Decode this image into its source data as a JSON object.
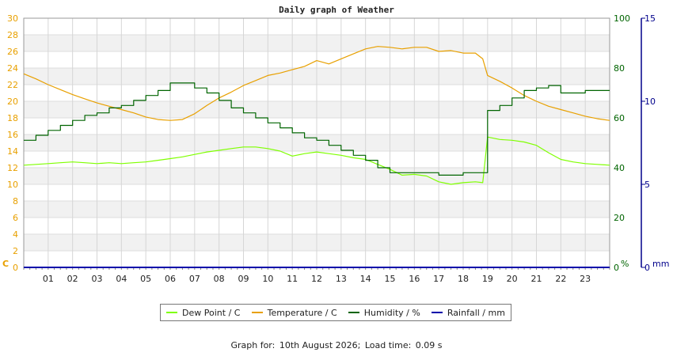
{
  "chart_data": {
    "type": "line",
    "title": "Daily graph of Weather",
    "x_ticks": [
      "01",
      "02",
      "03",
      "04",
      "05",
      "06",
      "07",
      "08",
      "09",
      "10",
      "11",
      "12",
      "13",
      "14",
      "15",
      "16",
      "17",
      "18",
      "19",
      "20",
      "21",
      "22",
      "23"
    ],
    "xlim": [
      0,
      24
    ],
    "axes": {
      "left": {
        "unit": "C",
        "ticks": [
          0,
          2,
          4,
          6,
          8,
          10,
          12,
          14,
          16,
          18,
          20,
          22,
          24,
          26,
          28,
          30
        ],
        "range": [
          0,
          30
        ],
        "color": "#e8a000"
      },
      "right1": {
        "unit": "%",
        "ticks": [
          0,
          20,
          40,
          60,
          80,
          100
        ],
        "range": [
          0,
          100
        ],
        "color": "#006400"
      },
      "right2": {
        "unit": "mm",
        "ticks": [
          0,
          5,
          10,
          15
        ],
        "range": [
          0,
          15
        ],
        "color": "#00008b"
      }
    },
    "series": [
      {
        "name": "Dew Point / C",
        "axis": "left",
        "color": "#7fff00",
        "x": [
          0,
          0.5,
          1,
          1.5,
          2,
          2.5,
          3,
          3.5,
          4,
          4.5,
          5,
          5.5,
          6,
          6.5,
          7,
          7.5,
          8,
          8.5,
          9,
          9.5,
          10,
          10.5,
          11,
          11.5,
          12,
          12.5,
          13,
          13.5,
          14,
          14.5,
          15,
          15.5,
          16,
          16.5,
          17,
          17.5,
          18,
          18.5,
          18.8,
          19,
          19.5,
          20,
          20.5,
          21,
          21.5,
          22,
          22.5,
          23,
          23.5,
          24
        ],
        "y": [
          12.3,
          12.4,
          12.5,
          12.6,
          12.7,
          12.6,
          12.5,
          12.6,
          12.5,
          12.6,
          12.7,
          12.9,
          13.1,
          13.3,
          13.6,
          13.9,
          14.1,
          14.3,
          14.5,
          14.5,
          14.3,
          14.0,
          13.4,
          13.7,
          13.9,
          13.7,
          13.5,
          13.2,
          13.0,
          12.4,
          11.8,
          11.1,
          11.2,
          11.0,
          10.3,
          10.0,
          10.2,
          10.3,
          10.2,
          15.7,
          15.4,
          15.3,
          15.1,
          14.7,
          13.8,
          13.0,
          12.7,
          12.5,
          12.4,
          12.3
        ]
      },
      {
        "name": "Temperature / C",
        "axis": "left",
        "color": "#e8a000",
        "x": [
          0,
          0.5,
          1,
          1.5,
          2,
          2.5,
          3,
          3.5,
          4,
          4.5,
          5,
          5.5,
          6,
          6.5,
          7,
          7.5,
          8,
          8.5,
          9,
          9.5,
          10,
          10.5,
          11,
          11.5,
          12,
          12.5,
          13,
          13.5,
          14,
          14.5,
          15,
          15.5,
          16,
          16.5,
          17,
          17.5,
          18,
          18.5,
          18.8,
          19,
          19.5,
          20,
          20.5,
          21,
          21.5,
          22,
          22.5,
          23,
          23.5,
          24
        ],
        "y": [
          23.3,
          22.7,
          22.0,
          21.4,
          20.8,
          20.3,
          19.8,
          19.4,
          19.0,
          18.6,
          18.1,
          17.8,
          17.7,
          17.8,
          18.5,
          19.5,
          20.4,
          21.1,
          21.9,
          22.5,
          23.1,
          23.4,
          23.8,
          24.2,
          24.9,
          24.5,
          25.1,
          25.7,
          26.3,
          26.6,
          26.5,
          26.3,
          26.5,
          26.5,
          26.0,
          26.1,
          25.8,
          25.8,
          25.1,
          23.1,
          22.4,
          21.6,
          20.7,
          20.0,
          19.4,
          19.0,
          18.6,
          18.2,
          17.9,
          17.7
        ]
      },
      {
        "name": "Humidity / %",
        "axis": "right1",
        "color": "#006400",
        "step": true,
        "x": [
          0,
          0.5,
          1,
          1.5,
          2,
          2.5,
          3,
          3.5,
          4,
          4.5,
          5,
          5.5,
          6,
          6.5,
          7,
          7.5,
          8,
          8.5,
          9,
          9.5,
          10,
          10.5,
          11,
          11.5,
          12,
          12.5,
          13,
          13.5,
          14,
          14.5,
          15,
          15.5,
          16,
          16.5,
          17,
          17.5,
          18,
          18.5,
          18.8,
          19,
          19.5,
          20,
          20.5,
          21,
          21.5,
          22,
          22.5,
          23,
          23.5,
          24
        ],
        "y": [
          51,
          53,
          55,
          57,
          59,
          61,
          62,
          64,
          65,
          67,
          69,
          71,
          74,
          74,
          72,
          70,
          67,
          64,
          62,
          60,
          58,
          56,
          54,
          52,
          51,
          49,
          47,
          45,
          43,
          40,
          38,
          38,
          38,
          38,
          37,
          37,
          38,
          38,
          38,
          63,
          65,
          68,
          71,
          72,
          73,
          70,
          70,
          71,
          71,
          71
        ]
      },
      {
        "name": "Rainfall / mm",
        "axis": "right2",
        "color": "#0000aa",
        "x": [
          0,
          24
        ],
        "y": [
          0,
          0
        ]
      }
    ],
    "grid": true,
    "legend": "bottom"
  },
  "footer": {
    "label": "Graph for:",
    "date": "10th August 2026;",
    "load_label": "Load time:",
    "load_time": "0.09 s"
  }
}
